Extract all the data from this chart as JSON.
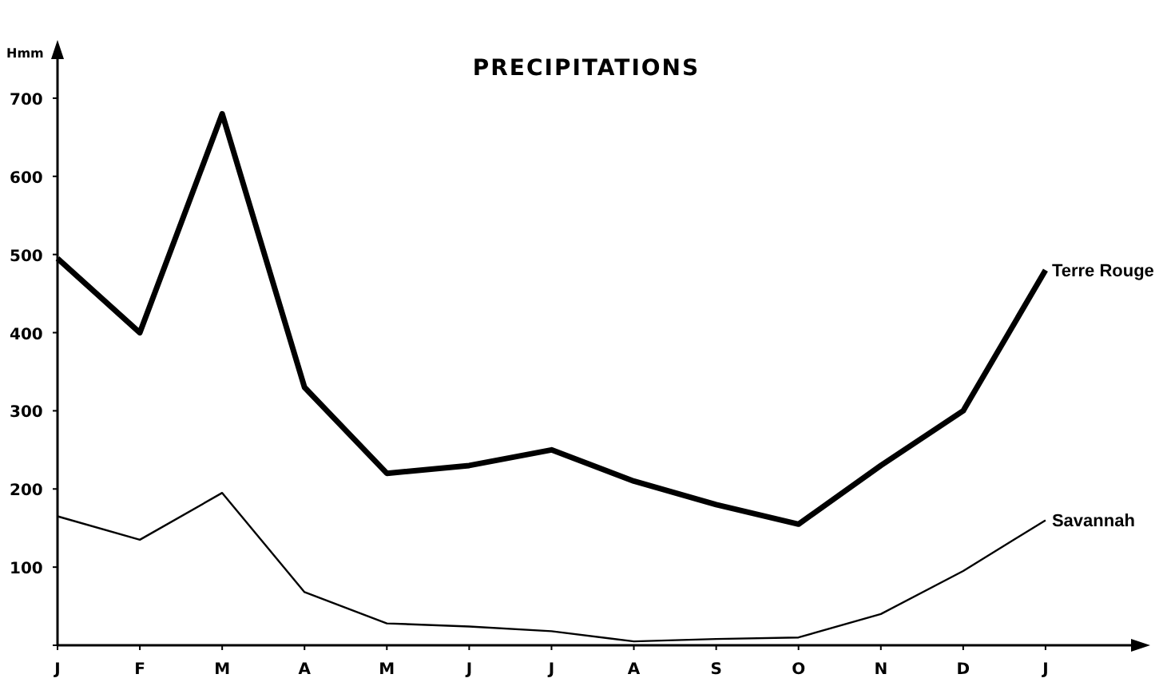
{
  "chart_data": {
    "type": "line",
    "title": "PRECIPITATIONS",
    "ylabel": "Hmm",
    "categories": [
      "J",
      "F",
      "M",
      "A",
      "M",
      "J",
      "J",
      "A",
      "S",
      "O",
      "N",
      "D",
      "J"
    ],
    "series": [
      {
        "name": "Terre Rouge",
        "color": "#000000",
        "values": [
          495,
          400,
          680,
          330,
          220,
          230,
          250,
          210,
          180,
          155,
          230,
          300,
          480
        ]
      },
      {
        "name": "Savannah",
        "color": "#000000",
        "values": [
          165,
          135,
          195,
          68,
          28,
          24,
          18,
          5,
          8,
          10,
          40,
          95,
          160
        ]
      }
    ],
    "ylim": [
      0,
      750
    ],
    "yticks": [
      {
        "value": 0,
        "label": null
      },
      100,
      200,
      300,
      400,
      500,
      600,
      700
    ],
    "grid": false,
    "marker": "none",
    "line_style": "solid"
  }
}
